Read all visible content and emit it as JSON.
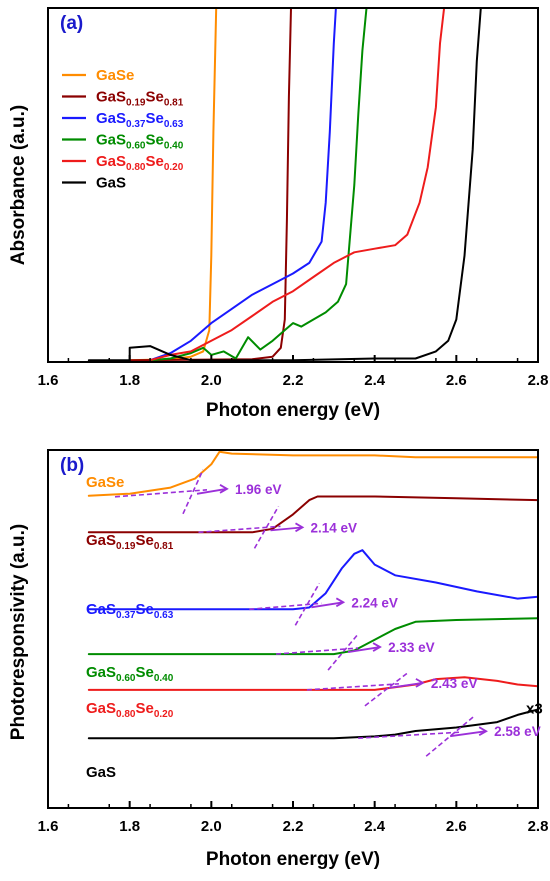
{
  "chart_data": [
    {
      "panel": "(a)",
      "type": "line",
      "xlabel": "Photon energy (eV)",
      "ylabel": "Absorbance (a.u.)",
      "xlim": [
        1.6,
        2.8
      ],
      "ylim": [
        0,
        1
      ],
      "x_ticks": [
        "1.6",
        "1.8",
        "2.0",
        "2.2",
        "2.4",
        "2.6",
        "2.8"
      ],
      "legend_position": "top-left",
      "series": [
        {
          "name": "GaSe",
          "label_base": "GaSe",
          "label_parts": [],
          "color": "#ff8c00",
          "points": [
            [
              1.8,
              0.005
            ],
            [
              1.9,
              0.008
            ],
            [
              1.95,
              0.015
            ],
            [
              1.98,
              0.03
            ],
            [
              1.995,
              0.09
            ],
            [
              2.0,
              0.3
            ],
            [
              2.005,
              0.65
            ],
            [
              2.012,
              1.0
            ]
          ]
        },
        {
          "name": "GaS0.19Se0.81",
          "label_base": "GaS",
          "label_parts": [
            [
              "0.19",
              "Se"
            ],
            [
              "0.81",
              ""
            ]
          ],
          "color": "#8b0000",
          "points": [
            [
              1.8,
              0.005
            ],
            [
              2.1,
              0.008
            ],
            [
              2.15,
              0.015
            ],
            [
              2.17,
              0.04
            ],
            [
              2.18,
              0.12
            ],
            [
              2.185,
              0.4
            ],
            [
              2.19,
              0.75
            ],
            [
              2.195,
              1.0
            ]
          ]
        },
        {
          "name": "GaS0.37Se0.63",
          "label_base": "GaS",
          "label_parts": [
            [
              "0.37",
              "Se"
            ],
            [
              "0.63",
              ""
            ]
          ],
          "color": "#1a1aff",
          "points": [
            [
              1.85,
              0.005
            ],
            [
              1.9,
              0.025
            ],
            [
              1.95,
              0.06
            ],
            [
              2.0,
              0.11
            ],
            [
              2.05,
              0.15
            ],
            [
              2.1,
              0.19
            ],
            [
              2.15,
              0.22
            ],
            [
              2.2,
              0.25
            ],
            [
              2.24,
              0.28
            ],
            [
              2.27,
              0.34
            ],
            [
              2.28,
              0.45
            ],
            [
              2.29,
              0.65
            ],
            [
              2.3,
              0.9
            ],
            [
              2.305,
              1.0
            ]
          ]
        },
        {
          "name": "GaS0.60Se0.40",
          "label_base": "GaS",
          "label_parts": [
            [
              "0.60",
              "Se"
            ],
            [
              "0.40",
              ""
            ]
          ],
          "color": "#008c00",
          "points": [
            [
              1.85,
              0.005
            ],
            [
              1.9,
              0.01
            ],
            [
              1.95,
              0.025
            ],
            [
              1.98,
              0.04
            ],
            [
              2.0,
              0.02
            ],
            [
              2.03,
              0.03
            ],
            [
              2.06,
              0.01
            ],
            [
              2.09,
              0.07
            ],
            [
              2.12,
              0.035
            ],
            [
              2.15,
              0.06
            ],
            [
              2.18,
              0.09
            ],
            [
              2.2,
              0.11
            ],
            [
              2.22,
              0.1
            ],
            [
              2.25,
              0.12
            ],
            [
              2.28,
              0.14
            ],
            [
              2.31,
              0.17
            ],
            [
              2.33,
              0.22
            ],
            [
              2.35,
              0.5
            ],
            [
              2.36,
              0.7
            ],
            [
              2.37,
              0.88
            ],
            [
              2.38,
              1.0
            ]
          ]
        },
        {
          "name": "GaS0.80Se0.20",
          "label_base": "GaS",
          "label_parts": [
            [
              "0.80",
              "Se"
            ],
            [
              "0.20",
              ""
            ]
          ],
          "color": "#ee1c1c",
          "points": [
            [
              1.85,
              0.005
            ],
            [
              1.9,
              0.02
            ],
            [
              1.95,
              0.03
            ],
            [
              2.0,
              0.06
            ],
            [
              2.05,
              0.09
            ],
            [
              2.1,
              0.13
            ],
            [
              2.15,
              0.17
            ],
            [
              2.2,
              0.2
            ],
            [
              2.25,
              0.24
            ],
            [
              2.3,
              0.28
            ],
            [
              2.35,
              0.31
            ],
            [
              2.4,
              0.32
            ],
            [
              2.45,
              0.33
            ],
            [
              2.48,
              0.36
            ],
            [
              2.51,
              0.45
            ],
            [
              2.53,
              0.55
            ],
            [
              2.55,
              0.72
            ],
            [
              2.56,
              0.9
            ],
            [
              2.57,
              1.0
            ]
          ]
        },
        {
          "name": "GaS",
          "label_base": "GaS",
          "label_parts": [],
          "color": "#000000",
          "points": [
            [
              1.7,
              0.005
            ],
            [
              1.8,
              0.005
            ],
            [
              1.8,
              0.04
            ],
            [
              1.85,
              0.045
            ],
            [
              1.9,
              0.02
            ],
            [
              1.95,
              0.005
            ],
            [
              2.2,
              0.005
            ],
            [
              2.4,
              0.01
            ],
            [
              2.5,
              0.01
            ],
            [
              2.55,
              0.03
            ],
            [
              2.58,
              0.06
            ],
            [
              2.6,
              0.12
            ],
            [
              2.62,
              0.3
            ],
            [
              2.64,
              0.6
            ],
            [
              2.65,
              0.85
            ],
            [
              2.66,
              1.0
            ]
          ]
        }
      ]
    },
    {
      "panel": "(b)",
      "type": "line",
      "xlabel": "Photon energy (eV)",
      "ylabel": "Photoresponsivity (a.u.)",
      "xlim": [
        1.6,
        2.8
      ],
      "ylim": [
        0,
        1
      ],
      "x_ticks": [
        "1.6",
        "1.8",
        "2.0",
        "2.2",
        "2.4",
        "2.6",
        "2.8"
      ],
      "scale_note": "x3",
      "series": [
        {
          "name": "GaSe",
          "label_base": "GaSe",
          "label_parts": [],
          "color": "#ff8c00",
          "bandgap": "1.96 eV",
          "bandgap_value": 1.96,
          "points": [
            [
              1.7,
              0.872
            ],
            [
              1.8,
              0.878
            ],
            [
              1.9,
              0.895
            ],
            [
              1.96,
              0.92
            ],
            [
              2.0,
              0.96
            ],
            [
              2.02,
              0.995
            ],
            [
              2.05,
              0.99
            ],
            [
              2.2,
              0.985
            ],
            [
              2.4,
              0.985
            ],
            [
              2.5,
              0.98
            ],
            [
              2.6,
              0.98
            ],
            [
              2.8,
              0.98
            ]
          ]
        },
        {
          "name": "GaS0.19Se0.81",
          "label_base": "GaS",
          "label_parts": [
            [
              "0.19",
              "Se"
            ],
            [
              "0.81",
              ""
            ]
          ],
          "color": "#8b0000",
          "bandgap": "2.14 eV",
          "bandgap_value": 2.14,
          "points": [
            [
              1.7,
              0.77
            ],
            [
              2.1,
              0.77
            ],
            [
              2.15,
              0.78
            ],
            [
              2.2,
              0.82
            ],
            [
              2.24,
              0.86
            ],
            [
              2.26,
              0.87
            ],
            [
              2.4,
              0.87
            ],
            [
              2.6,
              0.865
            ],
            [
              2.8,
              0.86
            ]
          ]
        },
        {
          "name": "GaS0.37Se0.63",
          "label_base": "GaS",
          "label_parts": [
            [
              "0.37",
              "Se"
            ],
            [
              "0.63",
              ""
            ]
          ],
          "color": "#1a1aff",
          "bandgap": "2.24 eV",
          "bandgap_value": 2.24,
          "points": [
            [
              1.7,
              0.555
            ],
            [
              2.2,
              0.555
            ],
            [
              2.24,
              0.56
            ],
            [
              2.28,
              0.6
            ],
            [
              2.32,
              0.67
            ],
            [
              2.35,
              0.71
            ],
            [
              2.37,
              0.72
            ],
            [
              2.4,
              0.68
            ],
            [
              2.45,
              0.65
            ],
            [
              2.55,
              0.63
            ],
            [
              2.65,
              0.605
            ],
            [
              2.75,
              0.585
            ],
            [
              2.8,
              0.59
            ]
          ]
        },
        {
          "name": "GaS0.60Se0.40",
          "label_base": "GaS",
          "label_parts": [
            [
              "0.60",
              "Se"
            ],
            [
              "0.40",
              ""
            ]
          ],
          "color": "#008c00",
          "bandgap": "2.33 eV",
          "bandgap_value": 2.33,
          "points": [
            [
              1.7,
              0.43
            ],
            [
              2.3,
              0.43
            ],
            [
              2.35,
              0.44
            ],
            [
              2.4,
              0.47
            ],
            [
              2.45,
              0.5
            ],
            [
              2.5,
              0.52
            ],
            [
              2.6,
              0.525
            ],
            [
              2.8,
              0.53
            ]
          ]
        },
        {
          "name": "GaS0.80Se0.20",
          "label_base": "GaS",
          "label_parts": [
            [
              "0.80",
              "Se"
            ],
            [
              "0.20",
              ""
            ]
          ],
          "color": "#ee1c1c",
          "bandgap": "2.43 eV",
          "bandgap_value": 2.43,
          "points": [
            [
              1.7,
              0.33
            ],
            [
              2.4,
              0.33
            ],
            [
              2.5,
              0.345
            ],
            [
              2.55,
              0.36
            ],
            [
              2.62,
              0.365
            ],
            [
              2.7,
              0.355
            ],
            [
              2.75,
              0.345
            ],
            [
              2.8,
              0.34
            ]
          ]
        },
        {
          "name": "GaS",
          "label_base": "GaS",
          "label_parts": [],
          "color": "#000000",
          "bandgap": "2.58 eV",
          "bandgap_value": 2.58,
          "points": [
            [
              1.7,
              0.195
            ],
            [
              2.0,
              0.195
            ],
            [
              2.3,
              0.195
            ],
            [
              2.4,
              0.2
            ],
            [
              2.45,
              0.205
            ],
            [
              2.5,
              0.215
            ],
            [
              2.6,
              0.225
            ],
            [
              2.7,
              0.24
            ],
            [
              2.75,
              0.26
            ],
            [
              2.8,
              0.275
            ]
          ]
        }
      ]
    }
  ]
}
